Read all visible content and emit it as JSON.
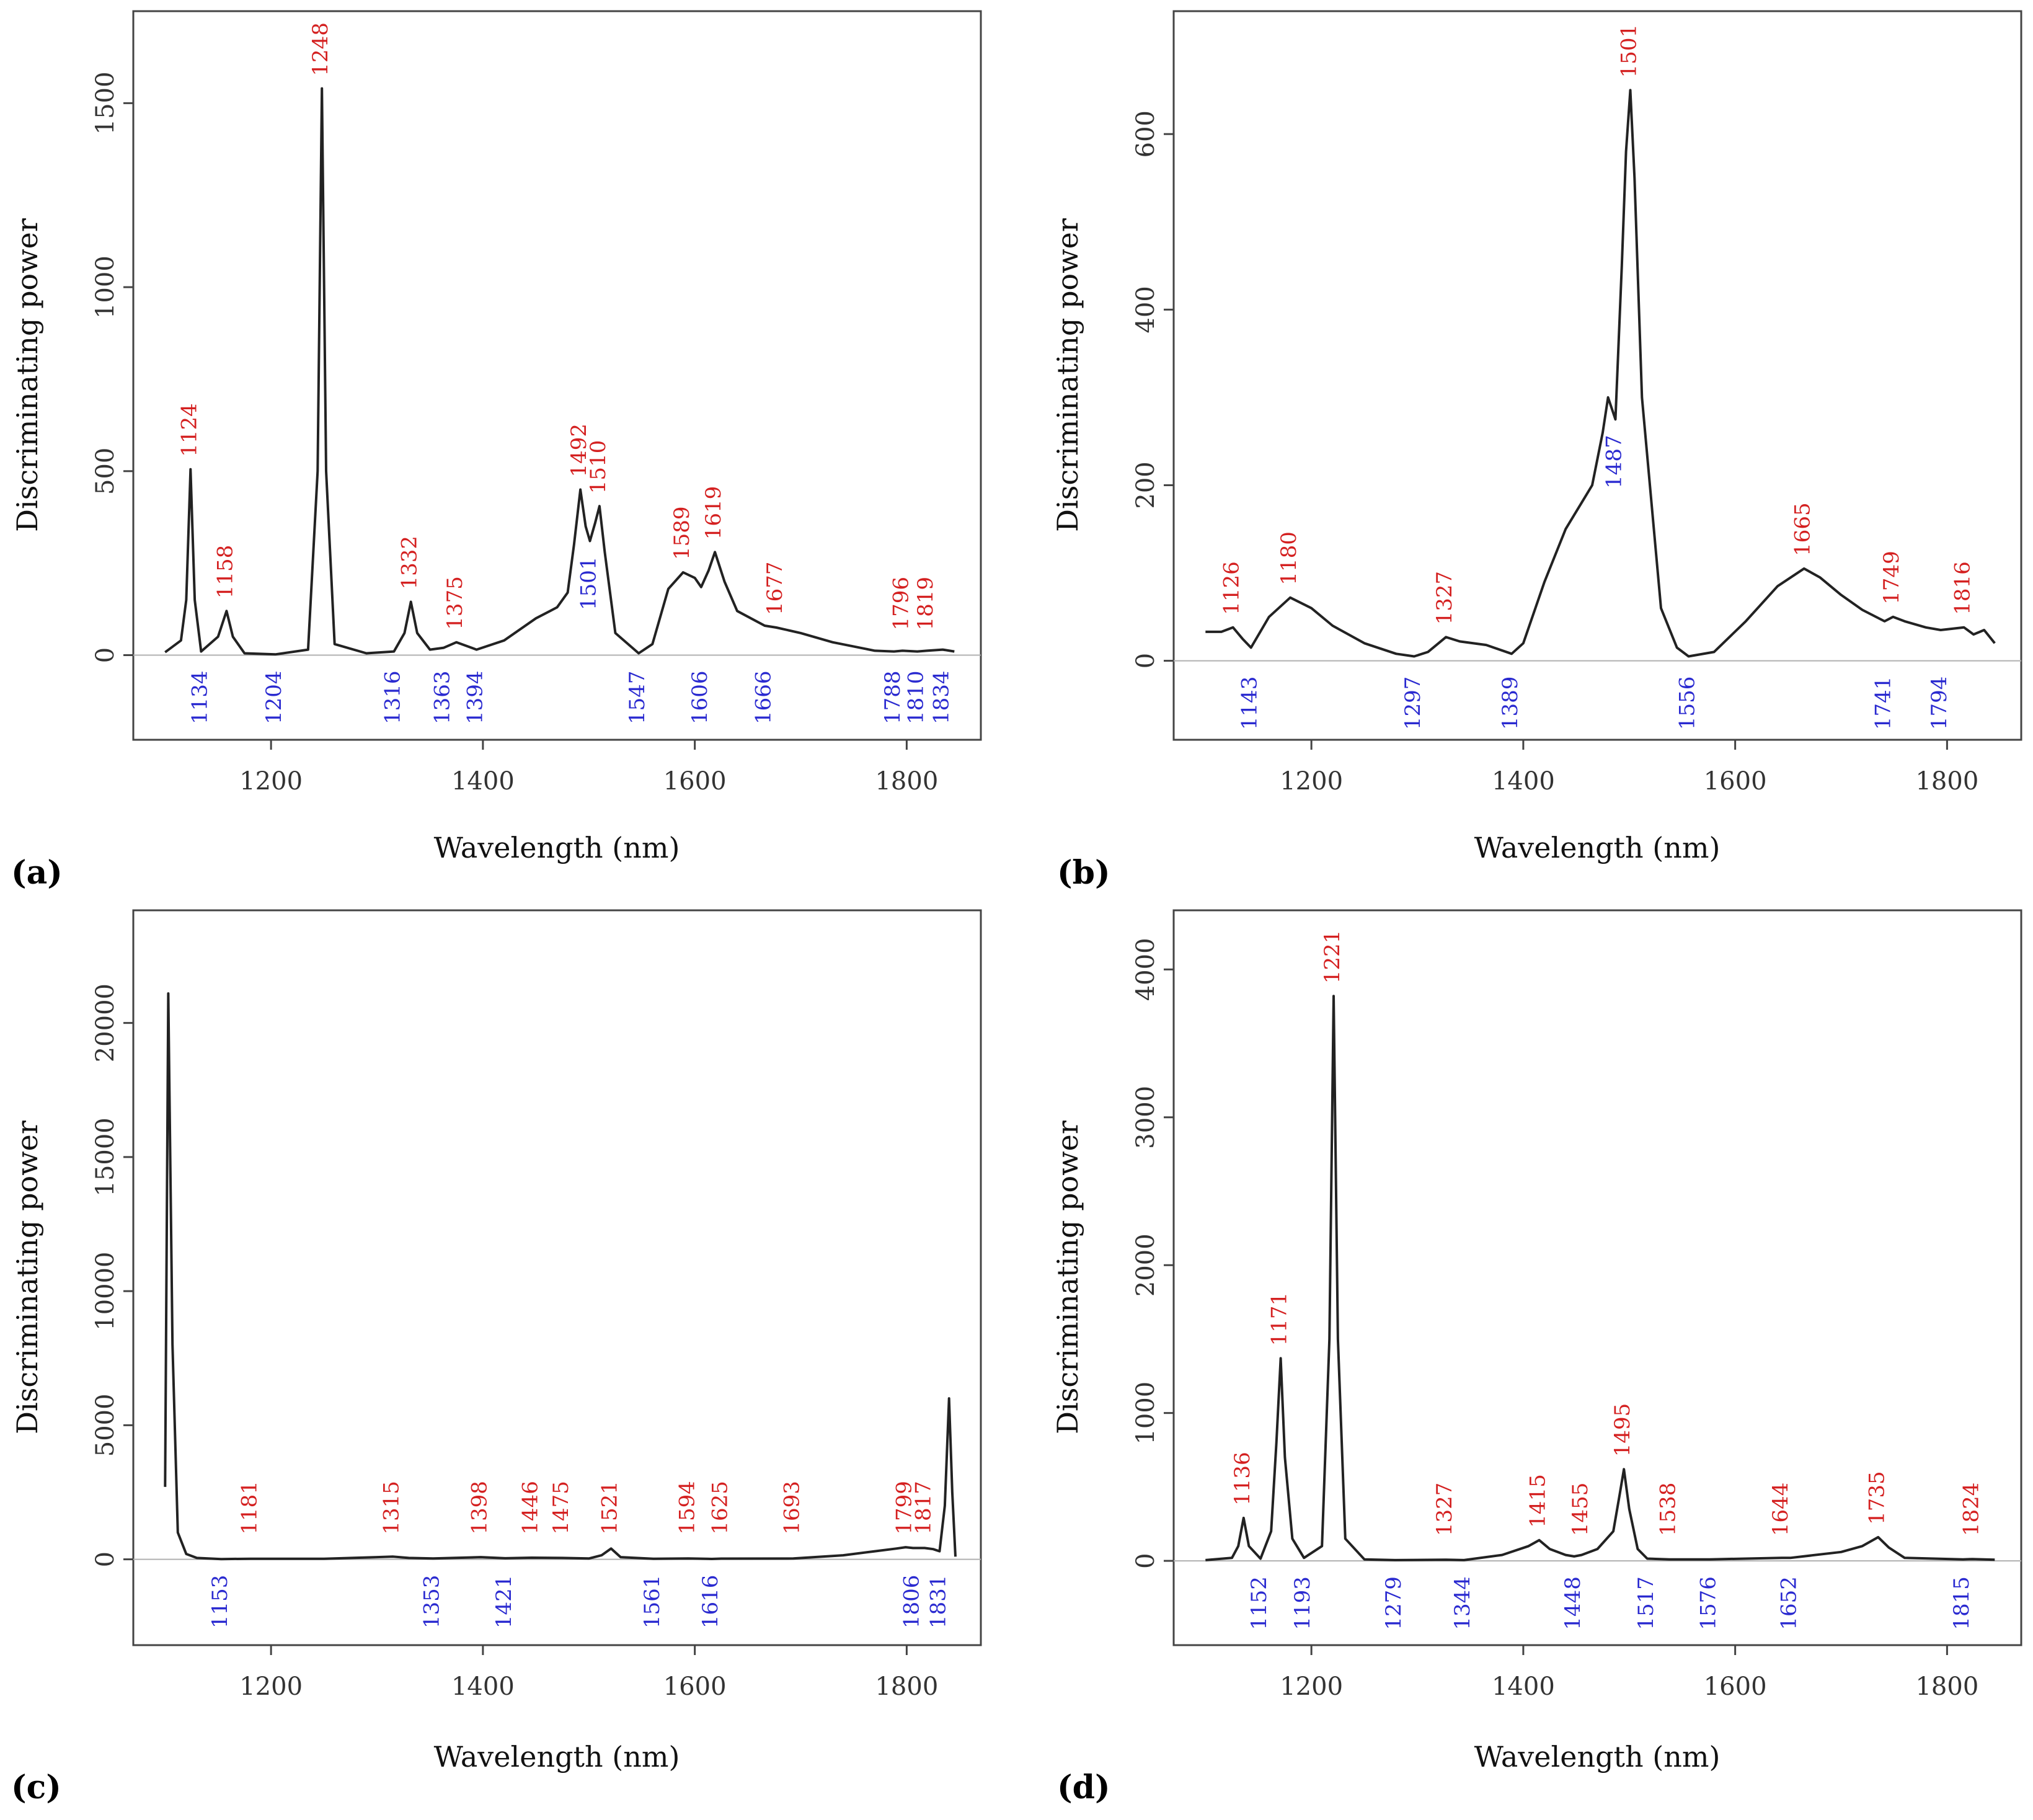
{
  "figure": {
    "colors": {
      "max": "#d42020",
      "min": "#2a2ad0",
      "line": "#222222",
      "zero": "#b0b0b0",
      "frame": "#444444"
    }
  },
  "chart_data": [
    {
      "type": "line",
      "panel": "(a)",
      "xlabel": "Wavelength (nm)",
      "ylabel": "Discriminating power",
      "xlim": [
        1070,
        1870
      ],
      "ylim": [
        -230,
        1750
      ],
      "xticks": [
        1200,
        1400,
        1600,
        1800
      ],
      "yticks": [
        0,
        500,
        1000,
        1500
      ],
      "series": [
        {
          "name": "discriminating power",
          "x": [
            1100,
            1115,
            1120,
            1124,
            1128,
            1134,
            1150,
            1158,
            1164,
            1175,
            1204,
            1235,
            1244,
            1248,
            1252,
            1260,
            1290,
            1316,
            1326,
            1332,
            1338,
            1350,
            1363,
            1375,
            1394,
            1420,
            1450,
            1470,
            1480,
            1486,
            1492,
            1497,
            1501,
            1506,
            1510,
            1515,
            1525,
            1547,
            1560,
            1575,
            1589,
            1600,
            1606,
            1613,
            1619,
            1628,
            1640,
            1666,
            1677,
            1700,
            1730,
            1770,
            1788,
            1796,
            1810,
            1819,
            1834,
            1845
          ],
          "y": [
            8,
            40,
            150,
            505,
            150,
            10,
            50,
            120,
            50,
            5,
            2,
            15,
            500,
            1540,
            500,
            30,
            5,
            10,
            60,
            145,
            60,
            15,
            20,
            35,
            15,
            40,
            100,
            130,
            170,
            300,
            450,
            350,
            310,
            360,
            405,
            280,
            60,
            5,
            30,
            180,
            225,
            210,
            185,
            230,
            280,
            200,
            120,
            80,
            75,
            60,
            35,
            12,
            10,
            12,
            10,
            12,
            15,
            10
          ]
        }
      ],
      "peaks_max": [
        {
          "label": "1124",
          "x": 1124,
          "y": 505
        },
        {
          "label": "1158",
          "x": 1158,
          "y": 120
        },
        {
          "label": "1248",
          "x": 1248,
          "y": 1540
        },
        {
          "label": "1332",
          "x": 1332,
          "y": 145
        },
        {
          "label": "1375",
          "x": 1375,
          "y": 35
        },
        {
          "label": "1492",
          "x": 1492,
          "y": 450
        },
        {
          "label": "1510",
          "x": 1510,
          "y": 405
        },
        {
          "label": "1589",
          "x": 1589,
          "y": 225
        },
        {
          "label": "1619",
          "x": 1619,
          "y": 280
        },
        {
          "label": "1677",
          "x": 1677,
          "y": 75
        },
        {
          "label": "1796",
          "x": 1796,
          "y": 12
        },
        {
          "label": "1819",
          "x": 1819,
          "y": 12
        }
      ],
      "peaks_min": [
        {
          "label": "1134",
          "x": 1134,
          "y": 10
        },
        {
          "label": "1204",
          "x": 1204,
          "y": 2
        },
        {
          "label": "1316",
          "x": 1316,
          "y": 10
        },
        {
          "label": "1363",
          "x": 1363,
          "y": 20
        },
        {
          "label": "1394",
          "x": 1394,
          "y": 15
        },
        {
          "label": "1501",
          "x": 1501,
          "y": 310
        },
        {
          "label": "1547",
          "x": 1547,
          "y": 5
        },
        {
          "label": "1606",
          "x": 1606,
          "y": 185
        },
        {
          "label": "1666",
          "x": 1666,
          "y": 80
        },
        {
          "label": "1788",
          "x": 1788,
          "y": 10
        },
        {
          "label": "1810",
          "x": 1810,
          "y": 10
        },
        {
          "label": "1834",
          "x": 1834,
          "y": 15
        }
      ]
    },
    {
      "type": "line",
      "panel": "(b)",
      "xlabel": "Wavelength (nm)",
      "ylabel": "Discriminating power",
      "xlim": [
        1070,
        1870
      ],
      "ylim": [
        -90,
        740
      ],
      "xticks": [
        1200,
        1400,
        1600,
        1800
      ],
      "yticks": [
        0,
        200,
        400,
        600
      ],
      "series": [
        {
          "name": "discriminating power",
          "x": [
            1100,
            1115,
            1126,
            1135,
            1143,
            1160,
            1180,
            1200,
            1220,
            1250,
            1280,
            1297,
            1310,
            1320,
            1327,
            1340,
            1365,
            1389,
            1400,
            1420,
            1440,
            1455,
            1465,
            1475,
            1480,
            1487,
            1493,
            1497,
            1501,
            1505,
            1512,
            1530,
            1545,
            1556,
            1580,
            1610,
            1640,
            1665,
            1680,
            1700,
            1720,
            1741,
            1749,
            1760,
            1780,
            1794,
            1816,
            1825,
            1835,
            1845
          ],
          "y": [
            33,
            33,
            38,
            25,
            15,
            50,
            72,
            60,
            40,
            20,
            8,
            5,
            10,
            20,
            27,
            22,
            18,
            8,
            20,
            90,
            150,
            180,
            200,
            260,
            300,
            275,
            450,
            580,
            650,
            550,
            300,
            60,
            15,
            5,
            10,
            45,
            85,
            105,
            95,
            75,
            58,
            45,
            50,
            45,
            38,
            35,
            38,
            30,
            35,
            20
          ]
        }
      ],
      "peaks_max": [
        {
          "label": "1126",
          "x": 1126,
          "y": 38
        },
        {
          "label": "1180",
          "x": 1180,
          "y": 72
        },
        {
          "label": "1327",
          "x": 1327,
          "y": 27
        },
        {
          "label": "1501",
          "x": 1501,
          "y": 650
        },
        {
          "label": "1665",
          "x": 1665,
          "y": 105
        },
        {
          "label": "1749",
          "x": 1749,
          "y": 50
        },
        {
          "label": "1816",
          "x": 1816,
          "y": 38
        }
      ],
      "peaks_min": [
        {
          "label": "1143",
          "x": 1143,
          "y": 15
        },
        {
          "label": "1297",
          "x": 1297,
          "y": 5
        },
        {
          "label": "1389",
          "x": 1389,
          "y": 8
        },
        {
          "label": "1487",
          "x": 1487,
          "y": 275
        },
        {
          "label": "1556",
          "x": 1556,
          "y": 5
        },
        {
          "label": "1741",
          "x": 1741,
          "y": 45
        },
        {
          "label": "1794",
          "x": 1794,
          "y": 35
        }
      ]
    },
    {
      "type": "line",
      "panel": "(c)",
      "xlabel": "Wavelength (nm)",
      "ylabel": "Discriminating power",
      "xlim": [
        1070,
        1870
      ],
      "ylim": [
        -3200,
        24200
      ],
      "xticks": [
        1200,
        1400,
        1600,
        1800
      ],
      "yticks": [
        0,
        5000,
        10000,
        15000,
        20000
      ],
      "series": [
        {
          "name": "discriminating power",
          "x": [
            1100,
            1103,
            1107,
            1112,
            1120,
            1130,
            1153,
            1181,
            1250,
            1300,
            1315,
            1330,
            1353,
            1398,
            1421,
            1446,
            1475,
            1500,
            1512,
            1521,
            1530,
            1561,
            1594,
            1616,
            1625,
            1693,
            1740,
            1770,
            1790,
            1799,
            1806,
            1817,
            1825,
            1831,
            1836,
            1840,
            1843,
            1846
          ],
          "y": [
            2700,
            21100,
            8000,
            1000,
            200,
            50,
            10,
            20,
            20,
            80,
            100,
            50,
            30,
            80,
            40,
            60,
            50,
            30,
            150,
            400,
            80,
            20,
            30,
            15,
            25,
            30,
            150,
            300,
            400,
            450,
            420,
            420,
            380,
            300,
            2000,
            6000,
            2500,
            100
          ]
        }
      ],
      "peaks_max": [
        {
          "label": "1181",
          "x": 1181,
          "y": 20
        },
        {
          "label": "1315",
          "x": 1315,
          "y": 100
        },
        {
          "label": "1398",
          "x": 1398,
          "y": 80
        },
        {
          "label": "1446",
          "x": 1446,
          "y": 60
        },
        {
          "label": "1475",
          "x": 1475,
          "y": 50
        },
        {
          "label": "1521",
          "x": 1521,
          "y": 400
        },
        {
          "label": "1594",
          "x": 1594,
          "y": 30
        },
        {
          "label": "1625",
          "x": 1625,
          "y": 25
        },
        {
          "label": "1693",
          "x": 1693,
          "y": 30
        },
        {
          "label": "1799",
          "x": 1799,
          "y": 450
        },
        {
          "label": "1817",
          "x": 1817,
          "y": 420
        }
      ],
      "peaks_min": [
        {
          "label": "1153",
          "x": 1153,
          "y": 10
        },
        {
          "label": "1353",
          "x": 1353,
          "y": 30
        },
        {
          "label": "1421",
          "x": 1421,
          "y": 40
        },
        {
          "label": "1561",
          "x": 1561,
          "y": 20
        },
        {
          "label": "1616",
          "x": 1616,
          "y": 15
        },
        {
          "label": "1806",
          "x": 1806,
          "y": 420
        },
        {
          "label": "1831",
          "x": 1831,
          "y": 300
        }
      ]
    },
    {
      "type": "line",
      "panel": "(d)",
      "xlabel": "Wavelength (nm)",
      "ylabel": "Discriminating power",
      "xlim": [
        1070,
        1870
      ],
      "ylim": [
        -570,
        4400
      ],
      "xticks": [
        1200,
        1400,
        1600,
        1800
      ],
      "yticks": [
        0,
        1000,
        2000,
        3000,
        4000
      ],
      "series": [
        {
          "name": "discriminating power",
          "x": [
            1100,
            1125,
            1131,
            1136,
            1141,
            1152,
            1162,
            1167,
            1171,
            1175,
            1182,
            1193,
            1210,
            1217,
            1221,
            1225,
            1232,
            1250,
            1279,
            1327,
            1344,
            1380,
            1405,
            1415,
            1425,
            1440,
            1448,
            1455,
            1470,
            1485,
            1491,
            1495,
            1500,
            1508,
            1517,
            1538,
            1576,
            1644,
            1652,
            1700,
            1720,
            1735,
            1745,
            1760,
            1815,
            1824,
            1845
          ],
          "y": [
            5,
            20,
            100,
            290,
            100,
            15,
            200,
            800,
            1370,
            700,
            150,
            20,
            100,
            1500,
            3820,
            1500,
            150,
            10,
            5,
            8,
            5,
            40,
            100,
            140,
            80,
            40,
            30,
            40,
            80,
            200,
            450,
            620,
            350,
            80,
            15,
            10,
            10,
            20,
            20,
            60,
            100,
            160,
            90,
            20,
            10,
            12,
            8
          ]
        }
      ],
      "peaks_max": [
        {
          "label": "1136",
          "x": 1136,
          "y": 290
        },
        {
          "label": "1171",
          "x": 1171,
          "y": 1370
        },
        {
          "label": "1221",
          "x": 1221,
          "y": 3820
        },
        {
          "label": "1327",
          "x": 1327,
          "y": 8
        },
        {
          "label": "1415",
          "x": 1415,
          "y": 140
        },
        {
          "label": "1455",
          "x": 1455,
          "y": 40
        },
        {
          "label": "1495",
          "x": 1495,
          "y": 620
        },
        {
          "label": "1538",
          "x": 1538,
          "y": 10
        },
        {
          "label": "1644",
          "x": 1644,
          "y": 20
        },
        {
          "label": "1735",
          "x": 1735,
          "y": 160
        },
        {
          "label": "1824",
          "x": 1824,
          "y": 12
        }
      ],
      "peaks_min": [
        {
          "label": "1152",
          "x": 1152,
          "y": 15
        },
        {
          "label": "1193",
          "x": 1193,
          "y": 20
        },
        {
          "label": "1279",
          "x": 1279,
          "y": 5
        },
        {
          "label": "1344",
          "x": 1344,
          "y": 5
        },
        {
          "label": "1448",
          "x": 1448,
          "y": 30
        },
        {
          "label": "1517",
          "x": 1517,
          "y": 15
        },
        {
          "label": "1576",
          "x": 1576,
          "y": 10
        },
        {
          "label": "1652",
          "x": 1652,
          "y": 20
        },
        {
          "label": "1815",
          "x": 1815,
          "y": 10
        }
      ]
    }
  ]
}
